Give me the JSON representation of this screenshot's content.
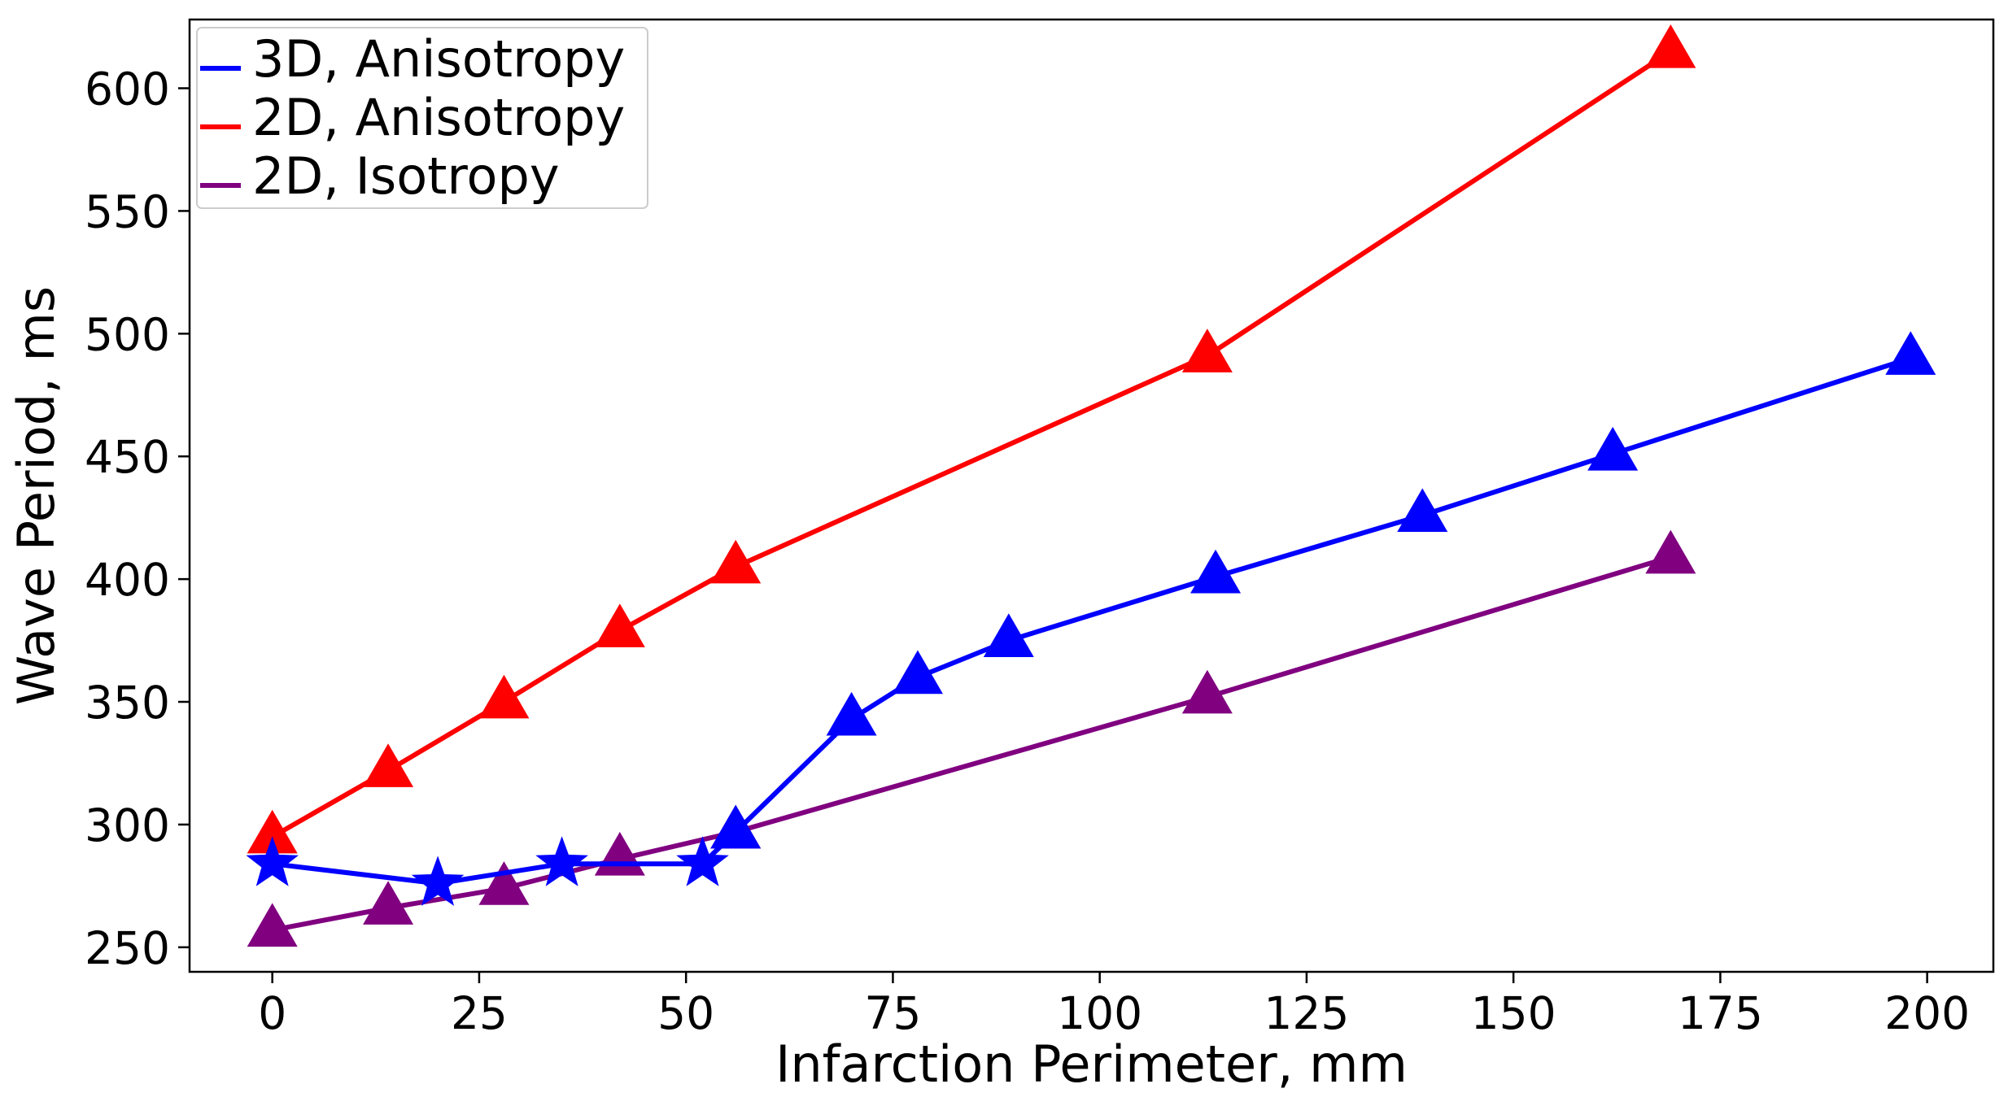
{
  "chart_data": {
    "type": "line",
    "title": "",
    "xlabel": "Infarction Perimeter, mm",
    "ylabel": "Wave Period, ms",
    "xlim": [
      -10,
      208
    ],
    "ylim": [
      240,
      628
    ],
    "xticks": [
      0,
      25,
      50,
      75,
      100,
      125,
      150,
      175,
      200
    ],
    "yticks": [
      250,
      300,
      350,
      400,
      450,
      500,
      550,
      600
    ],
    "xtick_labels": [
      "0",
      "25",
      "50",
      "75",
      "100",
      "125",
      "150",
      "175",
      "200"
    ],
    "ytick_labels": [
      "250",
      "300",
      "350",
      "400",
      "450",
      "500",
      "550",
      "600"
    ],
    "grid": false,
    "legend_position": "top-left",
    "series": [
      {
        "name": "3D, Anisotropy",
        "color": "#0000ff",
        "points": [
          {
            "x": 0,
            "y": 284,
            "marker": "star"
          },
          {
            "x": 20,
            "y": 276,
            "marker": "star"
          },
          {
            "x": 35,
            "y": 284,
            "marker": "star"
          },
          {
            "x": 52,
            "y": 284,
            "marker": "star"
          },
          {
            "x": 56,
            "y": 297,
            "marker": "triangle"
          },
          {
            "x": 70,
            "y": 343,
            "marker": "triangle"
          },
          {
            "x": 78,
            "y": 360,
            "marker": "triangle"
          },
          {
            "x": 89,
            "y": 375,
            "marker": "triangle"
          },
          {
            "x": 114,
            "y": 401,
            "marker": "triangle"
          },
          {
            "x": 139,
            "y": 426,
            "marker": "triangle"
          },
          {
            "x": 162,
            "y": 451,
            "marker": "triangle"
          },
          {
            "x": 198,
            "y": 490,
            "marker": "triangle"
          }
        ]
      },
      {
        "name": "2D, Anisotropy",
        "color": "#ff0000",
        "points": [
          {
            "x": 0,
            "y": 295,
            "marker": "triangle"
          },
          {
            "x": 14,
            "y": 322,
            "marker": "triangle"
          },
          {
            "x": 28,
            "y": 350,
            "marker": "triangle"
          },
          {
            "x": 42,
            "y": 379,
            "marker": "triangle"
          },
          {
            "x": 56,
            "y": 405,
            "marker": "triangle"
          },
          {
            "x": 113,
            "y": 491,
            "marker": "triangle"
          },
          {
            "x": 169,
            "y": 615,
            "marker": "triangle"
          }
        ]
      },
      {
        "name": "2D, Isotropy",
        "color": "#800080",
        "points": [
          {
            "x": 0,
            "y": 257,
            "marker": "triangle"
          },
          {
            "x": 14,
            "y": 266,
            "marker": "triangle"
          },
          {
            "x": 28,
            "y": 274,
            "marker": "triangle"
          },
          {
            "x": 42,
            "y": 286,
            "marker": "triangle"
          },
          {
            "x": 56,
            "y": 297,
            "marker": "triangle"
          },
          {
            "x": 113,
            "y": 352,
            "marker": "triangle"
          },
          {
            "x": 169,
            "y": 409,
            "marker": "triangle"
          }
        ]
      }
    ]
  }
}
